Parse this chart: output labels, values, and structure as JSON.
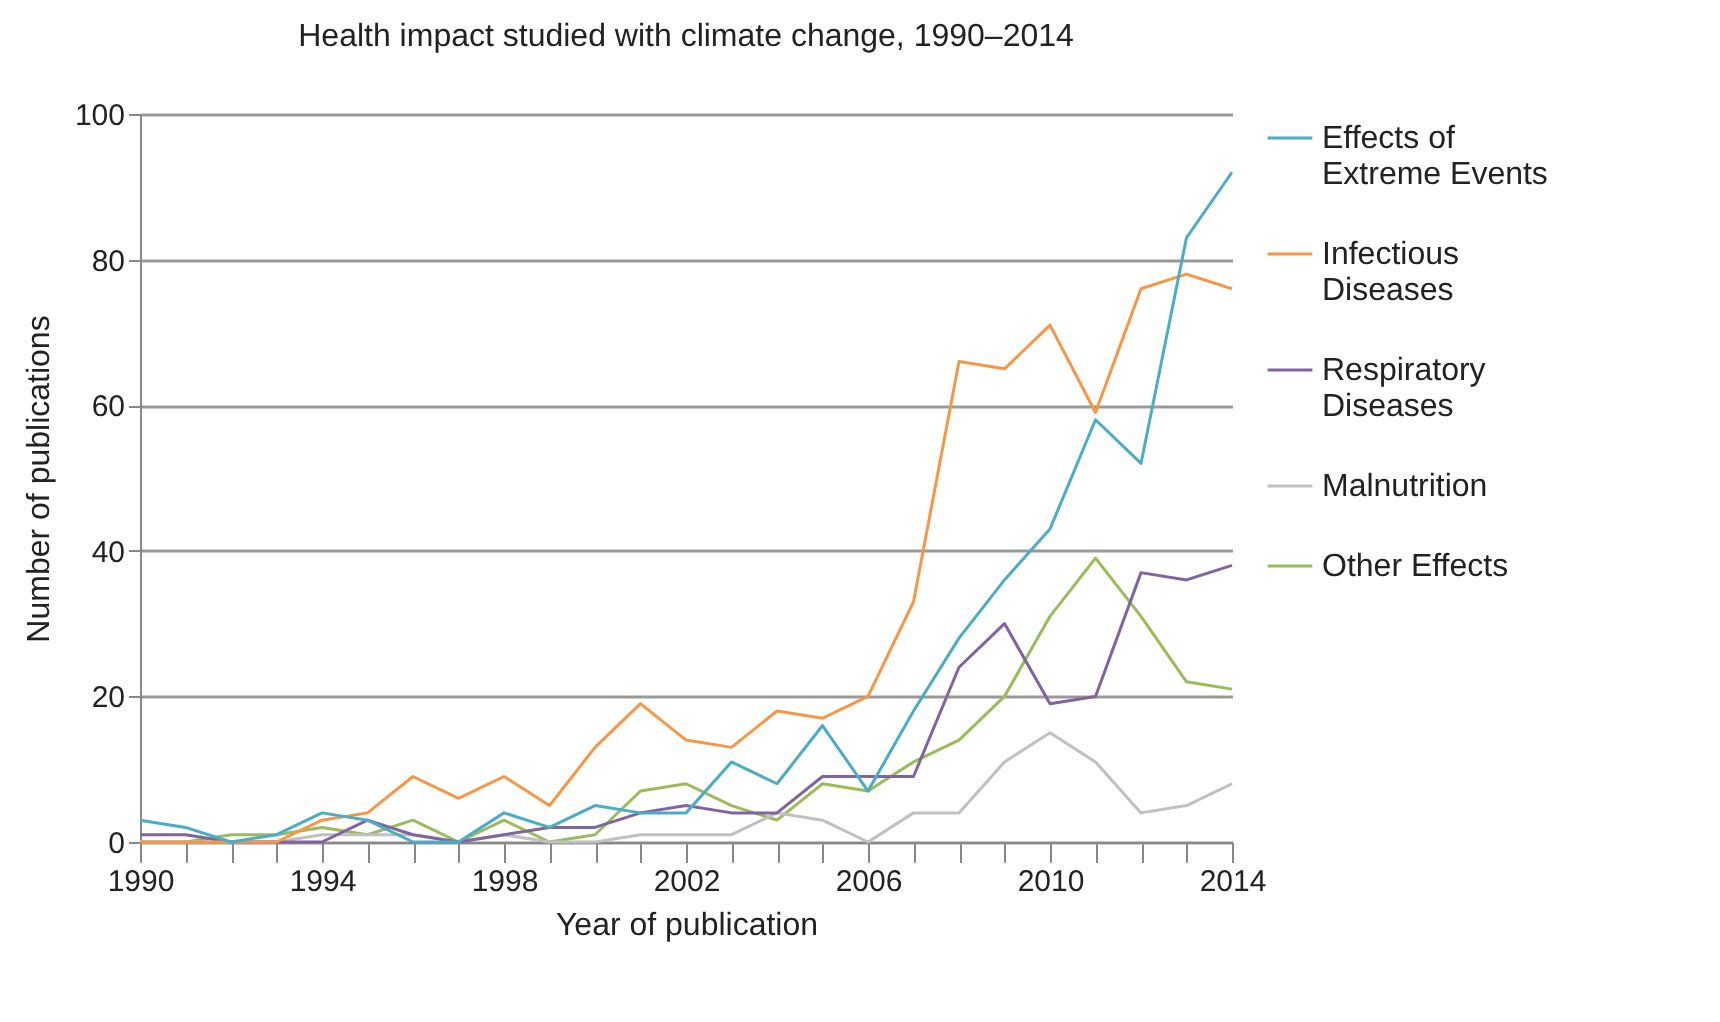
{
  "chart_data": {
    "type": "line",
    "title": "Health impact studied with climate change, 1990–2014",
    "xlabel": "Year of publication",
    "ylabel": "Number of publications",
    "x": [
      1990,
      1991,
      1992,
      1993,
      1994,
      1995,
      1996,
      1997,
      1998,
      1999,
      2000,
      2001,
      2002,
      2003,
      2004,
      2005,
      2006,
      2007,
      2008,
      2009,
      2010,
      2011,
      2012,
      2013,
      2014
    ],
    "series": [
      {
        "name": "Effects of Extreme Events",
        "color": "#4bacc6",
        "values": [
          3,
          2,
          0,
          1,
          4,
          3,
          0,
          0,
          4,
          2,
          5,
          4,
          4,
          11,
          8,
          16,
          7,
          18,
          28,
          36,
          43,
          58,
          52,
          83,
          92
        ]
      },
      {
        "name": "Infectious Diseases",
        "color": "#f79646",
        "values": [
          0,
          0,
          0,
          0,
          3,
          4,
          9,
          6,
          9,
          5,
          13,
          19,
          14,
          13,
          18,
          17,
          20,
          33,
          66,
          65,
          71,
          59,
          76,
          78,
          76
        ]
      },
      {
        "name": "Respiratory Diseases",
        "color": "#8064a2",
        "values": [
          1,
          1,
          0,
          0,
          0,
          3,
          1,
          0,
          1,
          2,
          2,
          4,
          5,
          4,
          4,
          9,
          9,
          9,
          24,
          30,
          19,
          20,
          37,
          36,
          38
        ]
      },
      {
        "name": "Malnutrition",
        "color": "#c0c0c0",
        "values": [
          0,
          0,
          0,
          0,
          1,
          1,
          1,
          0,
          1,
          0,
          0,
          1,
          1,
          1,
          4,
          3,
          0,
          4,
          4,
          11,
          15,
          11,
          4,
          5,
          8
        ]
      },
      {
        "name": "Other Effects",
        "color": "#9bbb59",
        "values": [
          0,
          0,
          1,
          1,
          2,
          1,
          3,
          0,
          3,
          0,
          1,
          7,
          8,
          5,
          3,
          8,
          7,
          11,
          14,
          20,
          31,
          39,
          31,
          22,
          21
        ]
      }
    ],
    "xlim": [
      1990,
      2014
    ],
    "xticks": [
      1990,
      {
        "value": 1991,
        "label": null
      },
      {
        "value": 1992,
        "label": null
      },
      {
        "value": 1993,
        "label": null
      },
      1994,
      {
        "value": 1995,
        "label": null
      },
      {
        "value": 1996,
        "label": null
      },
      {
        "value": 1997,
        "label": null
      },
      1998,
      {
        "value": 1999,
        "label": null
      },
      {
        "value": 2000,
        "label": null
      },
      {
        "value": 2001,
        "label": null
      },
      2002,
      {
        "value": 2003,
        "label": null
      },
      {
        "value": 2004,
        "label": null
      },
      {
        "value": 2005,
        "label": null
      },
      2006,
      {
        "value": 2007,
        "label": null
      },
      {
        "value": 2008,
        "label": null
      },
      {
        "value": 2009,
        "label": null
      },
      2010,
      {
        "value": 2011,
        "label": null
      },
      {
        "value": 2012,
        "label": null
      },
      {
        "value": 2013,
        "label": null
      },
      2014
    ],
    "ylim": [
      0,
      100
    ],
    "yticks": [
      0,
      20,
      40,
      60,
      80,
      100
    ],
    "grid": "y",
    "legend": "right",
    "marker": "none",
    "line_style": "solid"
  }
}
